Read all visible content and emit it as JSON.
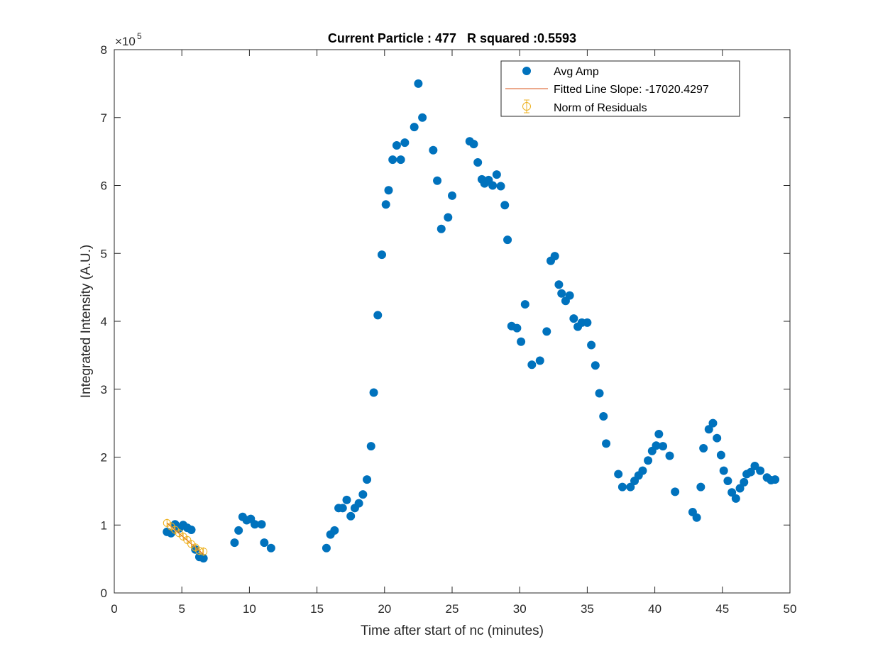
{
  "chart_data": {
    "type": "scatter",
    "title": "Current Particle : 477   R squared :0.5593",
    "xlabel": "Time after start of nc (minutes)",
    "ylabel": "Integrated Intensity (A.U.)",
    "xlim": [
      0,
      50
    ],
    "ylim": [
      0,
      800000
    ],
    "y_exponent_label": "×10",
    "y_exponent_power": "5",
    "x_ticks": [
      0,
      5,
      10,
      15,
      20,
      25,
      30,
      35,
      40,
      45,
      50
    ],
    "x_tick_labels": [
      "0",
      "5",
      "10",
      "15",
      "20",
      "25",
      "30",
      "35",
      "40",
      "45",
      "50"
    ],
    "y_ticks": [
      0,
      100000,
      200000,
      300000,
      400000,
      500000,
      600000,
      700000,
      800000
    ],
    "y_tick_labels": [
      "0",
      "1",
      "2",
      "3",
      "4",
      "5",
      "6",
      "7",
      "8"
    ],
    "grid": false,
    "legend_position": "top-right",
    "series": [
      {
        "name": "Avg Amp",
        "style": "filled-circle",
        "color": "#0072BD",
        "points": [
          [
            3.9,
            90000
          ],
          [
            4.2,
            88000
          ],
          [
            4.5,
            101000
          ],
          [
            4.8,
            95000
          ],
          [
            5.1,
            100000
          ],
          [
            5.4,
            96000
          ],
          [
            5.7,
            93000
          ],
          [
            6.0,
            64000
          ],
          [
            6.3,
            53000
          ],
          [
            6.6,
            51000
          ],
          [
            8.9,
            74000
          ],
          [
            9.2,
            92000
          ],
          [
            9.5,
            112000
          ],
          [
            9.8,
            107000
          ],
          [
            10.1,
            109000
          ],
          [
            10.4,
            101000
          ],
          [
            10.9,
            101000
          ],
          [
            11.1,
            74000
          ],
          [
            11.6,
            66000
          ],
          [
            15.7,
            66000
          ],
          [
            16.0,
            86000
          ],
          [
            16.3,
            92000
          ],
          [
            16.6,
            125000
          ],
          [
            16.9,
            125000
          ],
          [
            17.2,
            137000
          ],
          [
            17.5,
            113000
          ],
          [
            17.8,
            125000
          ],
          [
            18.1,
            132000
          ],
          [
            18.4,
            145000
          ],
          [
            18.7,
            167000
          ],
          [
            19.0,
            216000
          ],
          [
            19.2,
            295000
          ],
          [
            19.5,
            409000
          ],
          [
            19.8,
            498000
          ],
          [
            20.1,
            572000
          ],
          [
            20.3,
            593000
          ],
          [
            20.6,
            638000
          ],
          [
            20.9,
            659000
          ],
          [
            21.2,
            638000
          ],
          [
            21.5,
            663000
          ],
          [
            22.2,
            686000
          ],
          [
            22.5,
            750000
          ],
          [
            22.8,
            700000
          ],
          [
            23.6,
            652000
          ],
          [
            23.9,
            607000
          ],
          [
            24.2,
            536000
          ],
          [
            24.7,
            553000
          ],
          [
            25.0,
            585000
          ],
          [
            26.3,
            665000
          ],
          [
            26.6,
            661000
          ],
          [
            26.9,
            634000
          ],
          [
            27.2,
            609000
          ],
          [
            27.4,
            603000
          ],
          [
            27.7,
            608000
          ],
          [
            28.0,
            600000
          ],
          [
            28.3,
            616000
          ],
          [
            28.6,
            599000
          ],
          [
            28.9,
            571000
          ],
          [
            29.1,
            520000
          ],
          [
            29.4,
            393000
          ],
          [
            29.8,
            390000
          ],
          [
            30.1,
            370000
          ],
          [
            30.4,
            425000
          ],
          [
            30.9,
            336000
          ],
          [
            31.5,
            342000
          ],
          [
            32.0,
            385000
          ],
          [
            32.3,
            489000
          ],
          [
            32.6,
            496000
          ],
          [
            32.9,
            454000
          ],
          [
            33.1,
            441000
          ],
          [
            33.4,
            430000
          ],
          [
            33.7,
            438000
          ],
          [
            34.0,
            404000
          ],
          [
            34.3,
            392000
          ],
          [
            34.6,
            398000
          ],
          [
            35.0,
            398000
          ],
          [
            35.3,
            365000
          ],
          [
            35.6,
            335000
          ],
          [
            35.9,
            294000
          ],
          [
            36.2,
            260000
          ],
          [
            36.4,
            220000
          ],
          [
            37.3,
            175000
          ],
          [
            37.6,
            156000
          ],
          [
            38.2,
            156000
          ],
          [
            38.5,
            165000
          ],
          [
            38.8,
            173000
          ],
          [
            39.1,
            180000
          ],
          [
            39.5,
            195000
          ],
          [
            39.8,
            209000
          ],
          [
            40.1,
            217000
          ],
          [
            40.3,
            234000
          ],
          [
            40.6,
            216000
          ],
          [
            41.1,
            202000
          ],
          [
            41.5,
            149000
          ],
          [
            42.8,
            119000
          ],
          [
            43.1,
            111000
          ],
          [
            43.4,
            156000
          ],
          [
            43.6,
            213000
          ],
          [
            44.0,
            241000
          ],
          [
            44.3,
            250000
          ],
          [
            44.6,
            228000
          ],
          [
            44.9,
            203000
          ],
          [
            45.1,
            180000
          ],
          [
            45.4,
            165000
          ],
          [
            45.7,
            148000
          ],
          [
            46.0,
            139000
          ],
          [
            46.3,
            154000
          ],
          [
            46.6,
            163000
          ],
          [
            46.8,
            175000
          ],
          [
            47.1,
            178000
          ],
          [
            47.4,
            187000
          ],
          [
            47.8,
            180000
          ],
          [
            48.3,
            170000
          ],
          [
            48.6,
            166000
          ],
          [
            48.9,
            167000
          ]
        ]
      },
      {
        "name": "Fitted Line Slope: -17020.4297",
        "style": "line",
        "color": "#D95319",
        "points": [
          [
            3.9,
            103000
          ],
          [
            6.6,
            57000
          ]
        ]
      },
      {
        "name": "Norm of Residuals",
        "style": "open-circle-errorbar",
        "color": "#EDB120",
        "points": [
          [
            3.9,
            103000
          ],
          [
            4.2,
            98000
          ],
          [
            4.5,
            93000
          ],
          [
            4.8,
            88000
          ],
          [
            5.1,
            83000
          ],
          [
            5.4,
            78000
          ],
          [
            5.7,
            72000
          ],
          [
            6.0,
            67000
          ],
          [
            6.3,
            62000
          ],
          [
            6.6,
            61000
          ]
        ]
      }
    ]
  },
  "colors": {
    "avg_amp": "#0072BD",
    "fitted_line": "#D95319",
    "residuals": "#EDB120",
    "axes": "#262626"
  }
}
